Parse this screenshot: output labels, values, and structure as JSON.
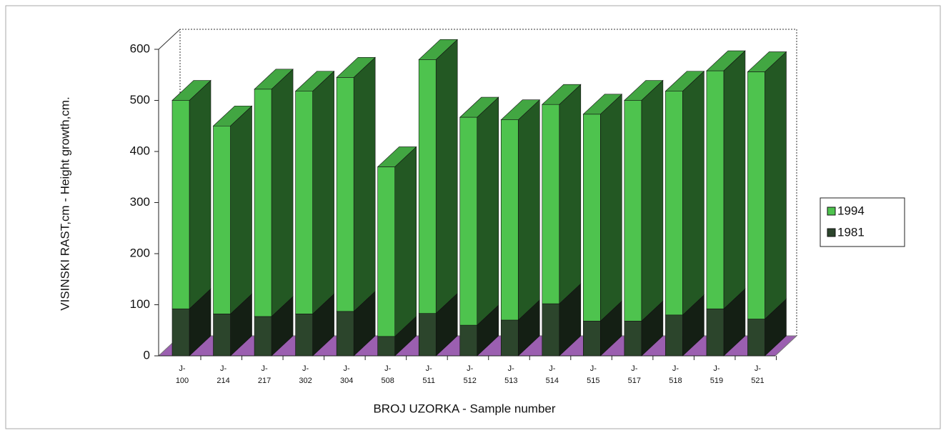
{
  "chart_data": {
    "type": "bar3d_stacked",
    "x_label": "BROJ UZORKA - Sample number",
    "y_label": "VISINSKI RAST,cm -  Height growth,cm.",
    "categories": [
      "J-\n100",
      "J-\n214",
      "J-\n217",
      "J-\n302",
      "J-\n304",
      "J-\n508",
      "J-\n511",
      "J-\n512",
      "J-\n513",
      "J-\n514",
      "J-\n515",
      "J-\n517",
      "J-\n518",
      "J-\n519",
      "J-\n521"
    ],
    "series": [
      {
        "name": "1981",
        "color": "#2c452c",
        "values": [
          92,
          82,
          77,
          82,
          87,
          38,
          83,
          60,
          70,
          102,
          68,
          68,
          80,
          92,
          72
        ]
      },
      {
        "name": "1994",
        "color": "#4ec34e",
        "values": [
          408,
          368,
          445,
          436,
          458,
          332,
          497,
          407,
          392,
          390,
          405,
          432,
          438,
          466,
          484
        ]
      }
    ],
    "legend_order": [
      1,
      0
    ],
    "ylim": [
      0,
      600
    ],
    "yticks": [
      0,
      100,
      200,
      300,
      400,
      500,
      600
    ],
    "grid": false
  }
}
